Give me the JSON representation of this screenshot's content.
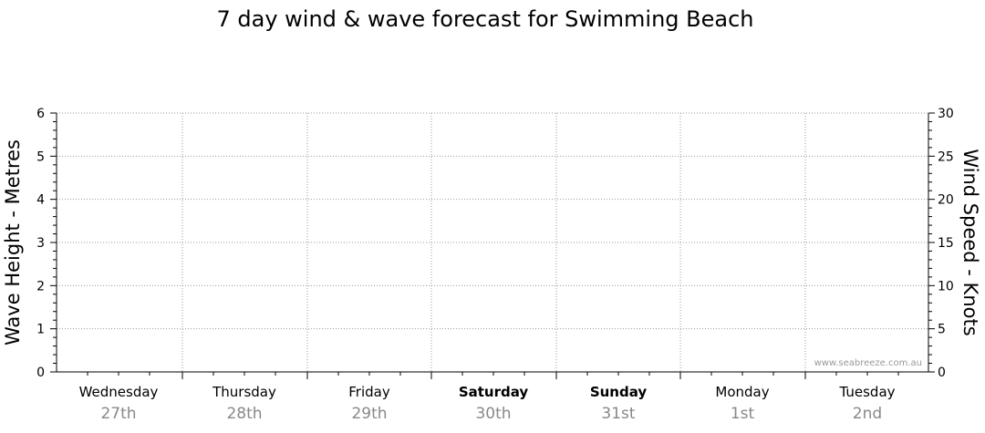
{
  "chart_data": {
    "type": "line",
    "title": "7 day wind & wave forecast for Swimming Beach",
    "ylabel_left": "Wave Height - Metres",
    "ylabel_right": "Wind Speed - Knots",
    "ylim_left": [
      0,
      6
    ],
    "ylim_right": [
      0,
      30
    ],
    "y_ticks_left": [
      "0",
      "1",
      "2",
      "3",
      "4",
      "5",
      "6"
    ],
    "y_ticks_right": [
      "0",
      "5",
      "10",
      "15",
      "20",
      "25",
      "30"
    ],
    "grid": true,
    "days": [
      {
        "day": "Wednesday",
        "date": "27th",
        "bold": false
      },
      {
        "day": "Thursday",
        "date": "28th",
        "bold": false
      },
      {
        "day": "Friday",
        "date": "29th",
        "bold": false
      },
      {
        "day": "Saturday",
        "date": "30th",
        "bold": true
      },
      {
        "day": "Sunday",
        "date": "31st",
        "bold": true
      },
      {
        "day": "Monday",
        "date": "1st",
        "bold": false
      },
      {
        "day": "Tuesday",
        "date": "2nd",
        "bold": false
      }
    ],
    "series": []
  },
  "watermark": "www.seabreeze.com.au"
}
